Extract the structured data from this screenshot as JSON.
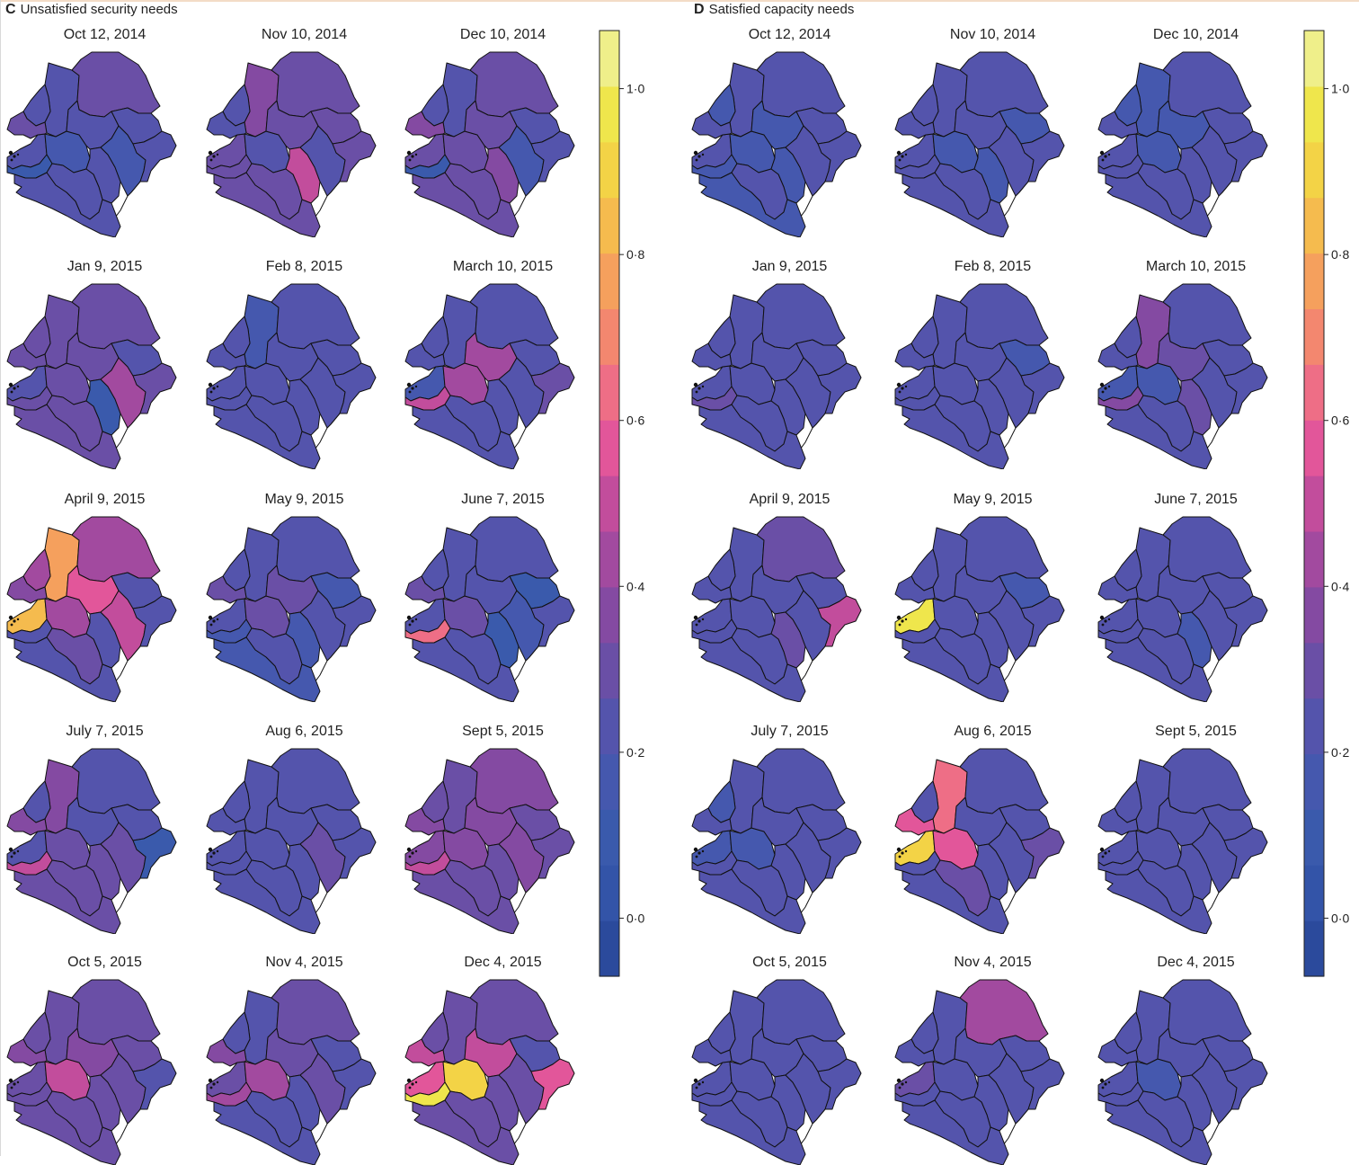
{
  "panels": [
    {
      "id": "C",
      "letter": "C",
      "title": "Unsatisfied security needs",
      "maps": [
        {
          "date": "Oct 12, 2014",
          "regions": [
            0.22,
            0.22,
            0.3,
            0.22,
            0.28,
            0.18,
            0.2,
            0.12,
            0.2,
            0.2,
            0.2,
            0.15,
            0.2,
            0.2
          ]
        },
        {
          "date": "Nov 10, 2014",
          "regions": [
            0.3,
            0.36,
            0.3,
            0.22,
            0.25,
            0.26,
            0.32,
            0.3,
            0.5,
            0.28,
            0.3,
            0.22,
            0.3,
            0.32
          ]
        },
        {
          "date": "Dec 10, 2014",
          "regions": [
            0.3,
            0.25,
            0.3,
            0.24,
            0.35,
            0.3,
            0.28,
            0.12,
            0.38,
            0.3,
            0.28,
            0.18,
            0.2,
            0.25
          ]
        },
        {
          "date": "Jan 9, 2015",
          "regions": [
            0.25,
            0.32,
            0.3,
            0.3,
            0.3,
            0.3,
            0.3,
            0.3,
            0.12,
            0.3,
            0.28,
            0.45,
            0.22,
            0.3
          ]
        },
        {
          "date": "Feb 8, 2015",
          "regions": [
            0.22,
            0.15,
            0.22,
            0.25,
            0.25,
            0.22,
            0.22,
            0.22,
            0.22,
            0.22,
            0.22,
            0.2,
            0.22,
            0.22
          ]
        },
        {
          "date": "March 10, 2015",
          "regions": [
            0.18,
            0.2,
            0.25,
            0.25,
            0.22,
            0.45,
            0.4,
            0.5,
            0.2,
            0.25,
            0.2,
            0.22,
            0.22,
            0.28
          ]
        },
        {
          "date": "April 9, 2015",
          "regions": [
            0.85,
            0.75,
            0.4,
            0.42,
            0.35,
            0.4,
            0.55,
            0.25,
            0.25,
            0.3,
            0.25,
            0.5,
            0.22,
            0.25
          ]
        },
        {
          "date": "May 9, 2015",
          "regions": [
            0.25,
            0.22,
            0.2,
            0.25,
            0.28,
            0.3,
            0.28,
            0.18,
            0.15,
            0.2,
            0.15,
            0.2,
            0.15,
            0.2
          ]
        },
        {
          "date": "June 7, 2015",
          "regions": [
            0.25,
            0.25,
            0.25,
            0.22,
            0.3,
            0.3,
            0.25,
            0.62,
            0.12,
            0.2,
            0.22,
            0.15,
            0.12,
            0.2
          ]
        },
        {
          "date": "July 7, 2015",
          "regions": [
            0.2,
            0.38,
            0.25,
            0.25,
            0.35,
            0.3,
            0.25,
            0.5,
            0.3,
            0.3,
            0.3,
            0.32,
            0.25,
            0.12
          ]
        },
        {
          "date": "Aug 6, 2015",
          "regions": [
            0.22,
            0.22,
            0.2,
            0.22,
            0.25,
            0.25,
            0.22,
            0.25,
            0.25,
            0.25,
            0.25,
            0.32,
            0.22,
            0.22
          ]
        },
        {
          "date": "Sept 5, 2015",
          "regions": [
            0.35,
            0.32,
            0.35,
            0.3,
            0.35,
            0.35,
            0.35,
            0.5,
            0.3,
            0.3,
            0.3,
            0.35,
            0.3,
            0.3
          ]
        },
        {
          "date": "Oct 5, 2015",
          "regions": [
            0.32,
            0.3,
            0.32,
            0.3,
            0.35,
            0.5,
            0.35,
            0.3,
            0.3,
            0.3,
            0.3,
            0.3,
            0.3,
            0.25
          ]
        },
        {
          "date": "Nov 4, 2015",
          "regions": [
            0.3,
            0.25,
            0.3,
            0.25,
            0.35,
            0.4,
            0.3,
            0.45,
            0.25,
            0.25,
            0.25,
            0.3,
            0.25,
            0.25
          ]
        },
        {
          "date": "Dec 4, 2015",
          "regions": [
            0.6,
            0.3,
            0.3,
            0.3,
            0.5,
            0.9,
            0.5,
            0.95,
            0.3,
            0.3,
            0.3,
            0.3,
            0.25,
            0.6
          ]
        }
      ]
    },
    {
      "id": "D",
      "letter": "D",
      "title": "Satisfied capacity needs",
      "maps": [
        {
          "date": "Oct 12, 2014",
          "regions": [
            0.2,
            0.2,
            0.22,
            0.18,
            0.2,
            0.18,
            0.15,
            0.15,
            0.15,
            0.2,
            0.15,
            0.22,
            0.2,
            0.2
          ]
        },
        {
          "date": "Nov 10, 2014",
          "regions": [
            0.2,
            0.2,
            0.2,
            0.22,
            0.2,
            0.18,
            0.25,
            0.25,
            0.18,
            0.25,
            0.2,
            0.22,
            0.18,
            0.22
          ]
        },
        {
          "date": "Dec 10, 2014",
          "regions": [
            0.2,
            0.18,
            0.22,
            0.18,
            0.2,
            0.15,
            0.15,
            0.2,
            0.2,
            0.2,
            0.2,
            0.25,
            0.22,
            0.22
          ]
        },
        {
          "date": "Jan 9, 2015",
          "regions": [
            0.22,
            0.22,
            0.22,
            0.22,
            0.22,
            0.2,
            0.22,
            0.28,
            0.2,
            0.25,
            0.22,
            0.2,
            0.22,
            0.22
          ]
        },
        {
          "date": "Feb 8, 2015",
          "regions": [
            0.22,
            0.22,
            0.22,
            0.22,
            0.22,
            0.22,
            0.25,
            0.25,
            0.25,
            0.22,
            0.22,
            0.2,
            0.15,
            0.22
          ]
        },
        {
          "date": "March 10, 2015",
          "regions": [
            0.15,
            0.35,
            0.25,
            0.25,
            0.25,
            0.18,
            0.3,
            0.35,
            0.3,
            0.25,
            0.25,
            0.22,
            0.25,
            0.25
          ]
        },
        {
          "date": "April 9, 2015",
          "regions": [
            0.2,
            0.2,
            0.32,
            0.22,
            0.22,
            0.22,
            0.2,
            0.2,
            0.3,
            0.22,
            0.2,
            0.2,
            0.22,
            0.48
          ]
        },
        {
          "date": "May 9, 2015",
          "regions": [
            0.95,
            0.2,
            0.22,
            0.22,
            0.25,
            0.25,
            0.25,
            0.25,
            0.22,
            0.25,
            0.25,
            0.2,
            0.15,
            0.25
          ]
        },
        {
          "date": "June 7, 2015",
          "regions": [
            0.22,
            0.22,
            0.22,
            0.22,
            0.22,
            0.22,
            0.22,
            0.2,
            0.15,
            0.22,
            0.2,
            0.22,
            0.2,
            0.22
          ]
        },
        {
          "date": "July 7, 2015",
          "regions": [
            0.18,
            0.2,
            0.22,
            0.18,
            0.2,
            0.18,
            0.25,
            0.25,
            0.2,
            0.2,
            0.2,
            0.2,
            0.2,
            0.22
          ]
        },
        {
          "date": "Aug 6, 2015",
          "regions": [
            0.9,
            0.62,
            0.25,
            0.22,
            0.55,
            0.6,
            0.25,
            0.25,
            0.22,
            0.3,
            0.22,
            0.22,
            0.22,
            0.3
          ]
        },
        {
          "date": "Sept 5, 2015",
          "regions": [
            0.22,
            0.22,
            0.22,
            0.22,
            0.22,
            0.2,
            0.2,
            0.2,
            0.2,
            0.2,
            0.2,
            0.22,
            0.2,
            0.22
          ]
        },
        {
          "date": "Oct 5, 2015",
          "regions": [
            0.2,
            0.22,
            0.22,
            0.2,
            0.2,
            0.25,
            0.2,
            0.2,
            0.2,
            0.2,
            0.2,
            0.2,
            0.2,
            0.22
          ]
        },
        {
          "date": "Nov 4, 2015",
          "regions": [
            0.3,
            0.2,
            0.45,
            0.2,
            0.25,
            0.22,
            0.22,
            0.22,
            0.22,
            0.22,
            0.22,
            0.22,
            0.2,
            0.22
          ]
        },
        {
          "date": "Dec 4, 2015",
          "regions": [
            0.2,
            0.22,
            0.22,
            0.2,
            0.2,
            0.18,
            0.22,
            0.22,
            0.22,
            0.2,
            0.2,
            0.2,
            0.2,
            0.22
          ]
        }
      ]
    }
  ],
  "colorbar": {
    "ticks": [
      {
        "value": 0.0,
        "label": "0·0"
      },
      {
        "value": 0.2,
        "label": "0·2"
      },
      {
        "value": 0.4,
        "label": "0·4"
      },
      {
        "value": 0.6,
        "label": "0·6"
      },
      {
        "value": 0.8,
        "label": "0·8"
      },
      {
        "value": 1.0,
        "label": "1·0"
      }
    ],
    "range": [
      -0.07,
      1.07
    ],
    "colors": [
      "#2b4a9c",
      "#3354a8",
      "#3a5aac",
      "#4558ae",
      "#5454ac",
      "#6a4fa6",
      "#844aa2",
      "#a24a9f",
      "#c24d9c",
      "#e2569a",
      "#ee6e86",
      "#f3876f",
      "#f5a05d",
      "#f5bb4e",
      "#f3d346",
      "#efe64c",
      "#efef8a"
    ]
  }
}
